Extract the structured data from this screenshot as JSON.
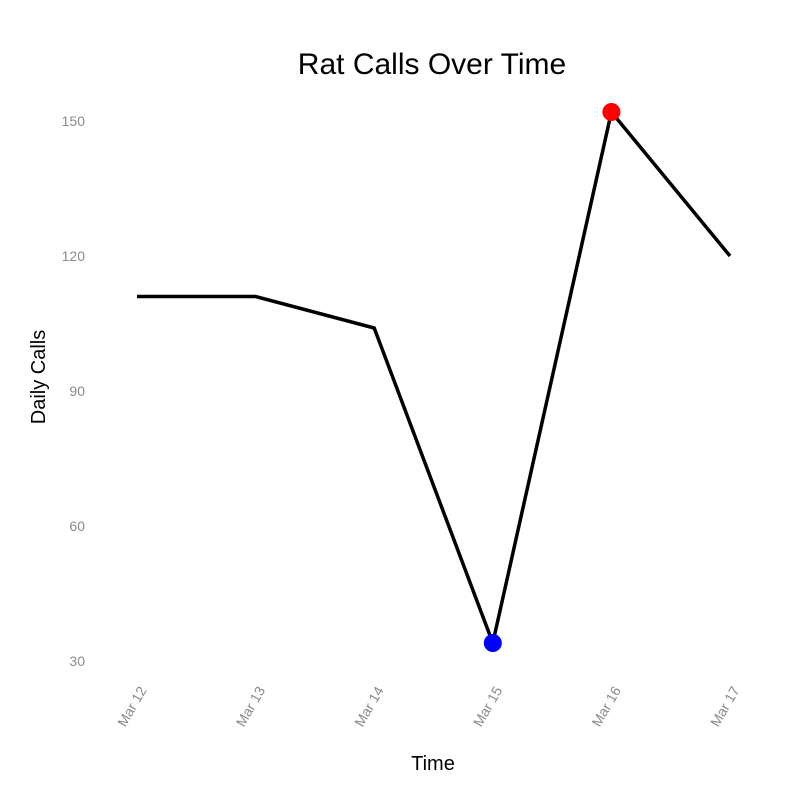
{
  "chart_data": {
    "type": "line",
    "title": "Rat Calls Over Time",
    "xlabel": "Time",
    "ylabel": "Daily Calls",
    "categories": [
      "Mar 12",
      "Mar 13",
      "Mar 14",
      "Mar 15",
      "Mar 16",
      "Mar 17"
    ],
    "values": [
      111,
      111,
      104,
      34,
      152,
      120
    ],
    "yticks": [
      "30",
      "60",
      "90",
      "120",
      "150"
    ],
    "ylim": [
      22,
      158
    ],
    "grid": false,
    "legend": "none",
    "line_color": "#000000",
    "highlights": [
      {
        "category": "Mar 15",
        "value": 34,
        "role": "minimum",
        "color": "#0000ff"
      },
      {
        "category": "Mar 16",
        "value": 152,
        "role": "maximum",
        "color": "#ff0000"
      }
    ]
  }
}
